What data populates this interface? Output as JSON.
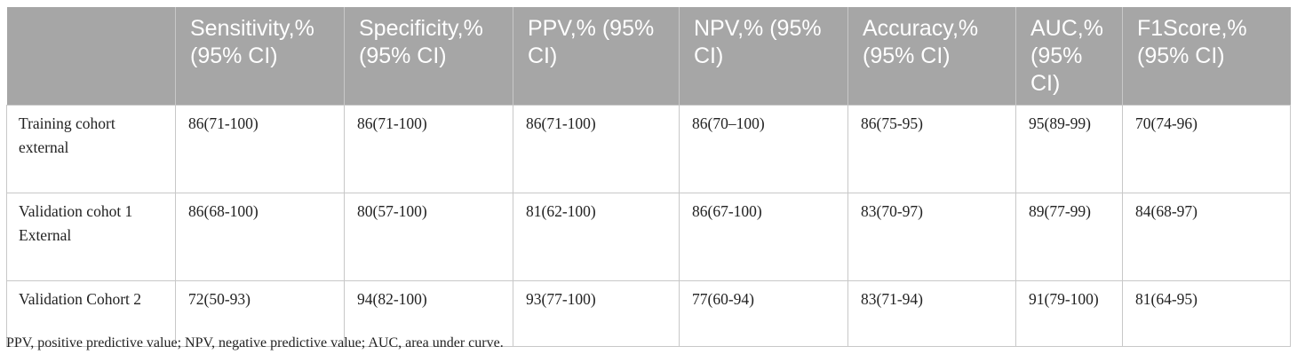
{
  "table": {
    "columns": [
      "",
      "Sensitivity,% (95% CI)",
      "Specificity,% (95% CI)",
      "PPV,% (95% CI)",
      "NPV,% (95% CI)",
      "Accuracy,% (95% CI)",
      "AUC,% (95% CI)",
      "F1Score,% (95% CI)"
    ],
    "rows": [
      {
        "label": "Training cohort external",
        "cells": [
          "86(71-100)",
          "86(71-100)",
          "86(71-100)",
          "86(70–100)",
          "86(75-95)",
          "95(89-99)",
          "70(74-96)"
        ]
      },
      {
        "label": "Validation cohot 1 External",
        "cells": [
          "86(68-100)",
          "80(57-100)",
          "81(62-100)",
          "86(67-100)",
          "83(70-97)",
          "89(77-99)",
          "84(68-97)"
        ]
      },
      {
        "label": "Validation Cohort 2",
        "cells": [
          "72(50-93)",
          "94(82-100)",
          "93(77-100)",
          "77(60-94)",
          "83(71-94)",
          "91(79-100)",
          "81(64-95)"
        ]
      }
    ]
  },
  "footnote": "PPV, positive predictive value; NPV, negative predictive value; AUC, area under curve."
}
